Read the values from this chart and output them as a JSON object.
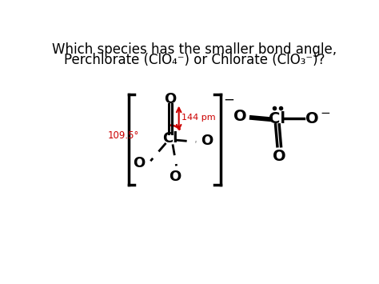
{
  "title_line1": "Which species has the smaller bond angle,",
  "title_line2": "Perchlorate (ClO₄⁻) or Chlorate (ClO₃⁻)?",
  "bg_color": "#ffffff",
  "text_color": "#000000",
  "red_color": "#cc0000",
  "bond_length_label": "144 pm",
  "angle_label": "109.5°",
  "charge_minus": "−"
}
